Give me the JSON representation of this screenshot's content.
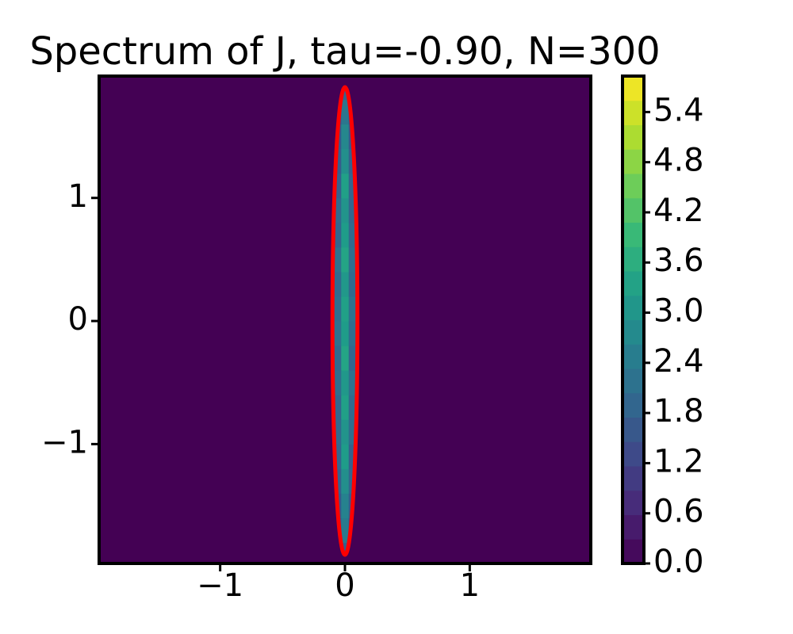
{
  "chart_data": {
    "type": "heatmap",
    "title": "Spectrum of J, tau=-0.90, N=300",
    "colormap": "viridis",
    "xlim": [
      -1.97,
      1.97
    ],
    "ylim": [
      -1.97,
      1.99
    ],
    "xticks": [
      {
        "value": -1,
        "label": "−1"
      },
      0,
      1
    ],
    "yticks": [
      {
        "value": -1,
        "label": "−1"
      },
      0,
      1
    ],
    "clim": [
      0,
      5.83
    ],
    "cticks": [
      {
        "value": 0,
        "label": "0.0"
      },
      0.6,
      1.2,
      1.8,
      2.4,
      {
        "value": 3,
        "label": "3.0"
      },
      3.6,
      4.2,
      4.8,
      5.4
    ],
    "ellipse": {
      "rx": 0.1,
      "ry": 1.9,
      "color": "#ff0000"
    },
    "x": [
      -0.06,
      0,
      0.06
    ],
    "y": [
      -1.9,
      -1.7,
      -1.5,
      -1.3,
      -1.1,
      -0.9,
      -0.7,
      -0.5,
      -0.3,
      -0.1,
      0.1,
      0.3,
      0.5,
      0.7,
      0.9,
      1.1,
      1.3,
      1.5,
      1.7,
      1.9
    ],
    "z": [
      [
        1.2,
        1.8,
        1.2
      ],
      [
        1.5,
        2.4,
        1.4
      ],
      [
        1.6,
        2.6,
        1.7
      ],
      [
        1.8,
        2.9,
        1.9
      ],
      [
        1.9,
        3.2,
        1.8
      ],
      [
        2.0,
        3.0,
        2.1
      ],
      [
        1.9,
        3.3,
        2.0
      ],
      [
        2.1,
        3.1,
        2.2
      ],
      [
        2.0,
        3.4,
        1.9
      ],
      [
        2.2,
        3.2,
        2.1
      ],
      [
        2.1,
        3.3,
        2.2
      ],
      [
        2.0,
        3.1,
        2.0
      ],
      [
        2.2,
        3.4,
        2.1
      ],
      [
        1.9,
        3.2,
        2.0
      ],
      [
        2.0,
        3.0,
        1.9
      ],
      [
        1.8,
        3.3,
        1.9
      ],
      [
        1.7,
        2.9,
        1.8
      ],
      [
        1.6,
        2.7,
        1.6
      ],
      [
        1.4,
        2.3,
        1.5
      ],
      [
        1.1,
        1.9,
        1.2
      ]
    ]
  }
}
